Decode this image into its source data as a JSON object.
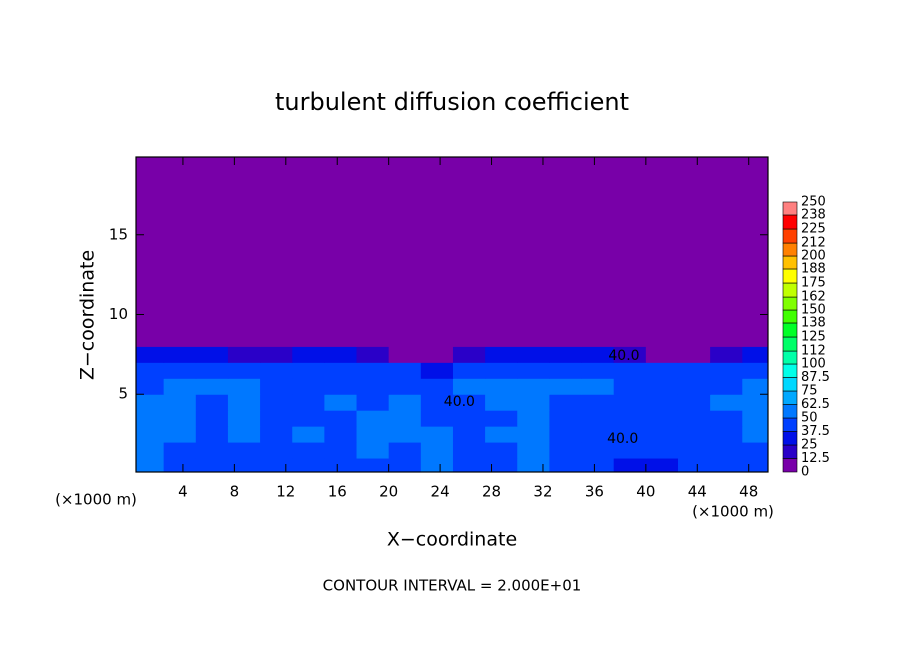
{
  "chart_data": {
    "type": "contour",
    "title": "turbulent diffusion coefficient",
    "x_label": "X−coordinate",
    "y_label": "Z−coordinate",
    "x_unit": "(×1000 m)",
    "y_unit": "(×1000 m)",
    "footer": "CONTOUR INTERVAL = 2.000E+01",
    "xlim": [
      0.35,
      49.5
    ],
    "ylim": [
      0.125,
      19.875
    ],
    "xticks": [
      4,
      8,
      12,
      16,
      20,
      24,
      28,
      32,
      36,
      40,
      44,
      48
    ],
    "yticks": [
      5,
      10,
      15
    ],
    "x_edges": [
      0.35,
      2.5,
      5,
      7.5,
      10,
      12.5,
      15,
      17.5,
      20,
      22.5,
      25,
      27.5,
      30,
      32.5,
      35,
      37.5,
      40,
      42.5,
      45,
      47.5,
      49.5
    ],
    "z_edges": [
      0.125,
      1,
      2,
      3,
      4,
      5,
      6,
      7,
      8,
      19.875
    ],
    "values": [
      [
        60,
        45,
        38,
        40,
        38,
        45,
        42,
        45,
        42,
        50,
        40,
        45,
        60,
        45,
        38,
        35,
        35,
        38,
        40,
        45
      ],
      [
        62,
        48,
        40,
        45,
        42,
        48,
        45,
        50,
        48,
        55,
        45,
        48,
        62,
        48,
        40,
        38,
        38,
        40,
        42,
        48
      ],
      [
        58,
        50,
        42,
        50,
        45,
        50,
        48,
        55,
        52,
        50,
        48,
        50,
        58,
        45,
        40,
        40,
        40,
        42,
        45,
        50
      ],
      [
        55,
        52,
        45,
        55,
        48,
        45,
        45,
        50,
        55,
        48,
        45,
        48,
        55,
        45,
        42,
        42,
        42,
        45,
        48,
        52
      ],
      [
        50,
        55,
        48,
        55,
        45,
        42,
        50,
        48,
        50,
        45,
        48,
        50,
        52,
        48,
        45,
        45,
        45,
        48,
        50,
        55
      ],
      [
        48,
        55,
        50,
        50,
        42,
        45,
        48,
        45,
        48,
        42,
        50,
        52,
        55,
        52,
        50,
        48,
        45,
        45,
        48,
        52
      ],
      [
        45,
        48,
        45,
        42,
        40,
        42,
        45,
        42,
        42,
        35,
        45,
        48,
        48,
        48,
        45,
        45,
        42,
        40,
        42,
        48
      ],
      [
        35,
        35,
        30,
        20,
        15,
        30,
        30,
        20,
        10,
        5,
        20,
        30,
        30,
        30,
        25,
        20,
        10,
        5,
        15,
        35
      ],
      [
        0,
        0,
        0,
        0,
        0,
        0,
        0,
        0,
        0,
        0,
        0,
        0,
        0,
        0,
        0,
        0,
        0,
        0,
        0,
        0
      ]
    ],
    "contour_labels": [
      {
        "text": "40.0",
        "x": 38.3,
        "y": 7.4
      },
      {
        "text": "40.0",
        "x": 38.2,
        "y": 2.2
      },
      {
        "text": "40.0",
        "x": 25.5,
        "y": 4.5
      }
    ],
    "levels": [
      0,
      12.5,
      25,
      37.5,
      50,
      62.5,
      75,
      87.5,
      100,
      112,
      125,
      138,
      150,
      162,
      175,
      188,
      200,
      212,
      225,
      238,
      250
    ],
    "colors": [
      "#7800a8",
      "#2a00c8",
      "#0010e8",
      "#0040ff",
      "#0078ff",
      "#00a8ff",
      "#00d8ff",
      "#00ffe8",
      "#00ffa8",
      "#00ff68",
      "#00ff28",
      "#40ff00",
      "#80ff00",
      "#c0ff00",
      "#ffff00",
      "#ffc000",
      "#ff8000",
      "#ff4000",
      "#ff0000",
      "#ff8080"
    ]
  }
}
